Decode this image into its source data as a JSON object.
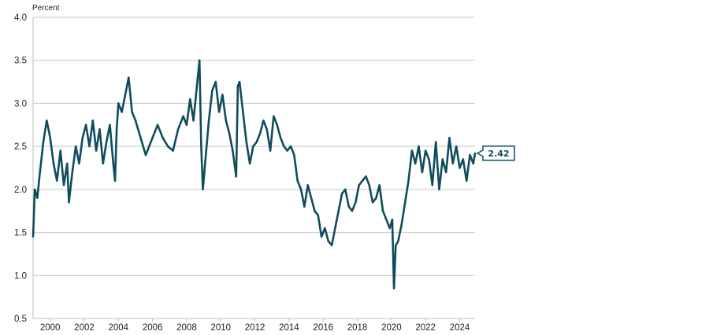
{
  "chart_data": {
    "type": "line",
    "title": "",
    "ylabel": "Percent",
    "xlabel": "",
    "x_range": [
      1999.0,
      2024.9
    ],
    "ylim": [
      0.5,
      4.0
    ],
    "y_ticks": [
      "0.5",
      "1.0",
      "1.5",
      "2.0",
      "2.5",
      "3.0",
      "3.5",
      "4.0"
    ],
    "x_ticks": [
      "2000",
      "2002",
      "2004",
      "2006",
      "2008",
      "2010",
      "2012",
      "2014",
      "2016",
      "2018",
      "2020",
      "2022",
      "2024"
    ],
    "grid": "horizontal",
    "line_color": "#0f4c5c",
    "latest_value_label": "2.42",
    "series": [
      {
        "x": [
          1999.0,
          1999.1,
          1999.25,
          1999.4,
          1999.6,
          1999.8,
          2000.0,
          2000.2,
          2000.4,
          2000.6,
          2000.8,
          2001.0,
          2001.1,
          2001.3,
          2001.5,
          2001.7,
          2001.9,
          2002.1,
          2002.3,
          2002.5,
          2002.7,
          2002.9,
          2003.1,
          2003.3,
          2003.5,
          2003.7,
          2003.8,
          2003.9,
          2004.0,
          2004.2,
          2004.4,
          2004.6,
          2004.8,
          2005.0,
          2005.3,
          2005.6,
          2005.8,
          2006.0,
          2006.3,
          2006.6,
          2006.9,
          2007.2,
          2007.5,
          2007.8,
          2008.0,
          2008.2,
          2008.4,
          2008.6,
          2008.75,
          2008.85,
          2008.95,
          2009.1,
          2009.3,
          2009.5,
          2009.7,
          2009.9,
          2010.1,
          2010.3,
          2010.5,
          2010.7,
          2010.9,
          2011.0,
          2011.1,
          2011.3,
          2011.5,
          2011.7,
          2011.9,
          2012.1,
          2012.3,
          2012.5,
          2012.7,
          2012.9,
          2013.1,
          2013.3,
          2013.5,
          2013.7,
          2013.9,
          2014.1,
          2014.3,
          2014.5,
          2014.7,
          2014.9,
          2015.1,
          2015.3,
          2015.5,
          2015.7,
          2015.9,
          2016.1,
          2016.3,
          2016.5,
          2016.7,
          2016.9,
          2017.1,
          2017.3,
          2017.5,
          2017.7,
          2017.9,
          2018.1,
          2018.3,
          2018.5,
          2018.7,
          2018.9,
          2019.1,
          2019.3,
          2019.5,
          2019.7,
          2019.9,
          2020.05,
          2020.15,
          2020.25,
          2020.4,
          2020.6,
          2020.8,
          2021.0,
          2021.2,
          2021.4,
          2021.6,
          2021.8,
          2022.0,
          2022.2,
          2022.4,
          2022.6,
          2022.8,
          2023.0,
          2023.2,
          2023.4,
          2023.6,
          2023.8,
          2024.0,
          2024.2,
          2024.4,
          2024.6,
          2024.8,
          2024.9
        ],
        "y": [
          1.45,
          2.0,
          1.9,
          2.2,
          2.55,
          2.8,
          2.6,
          2.3,
          2.1,
          2.45,
          2.05,
          2.3,
          1.85,
          2.2,
          2.5,
          2.3,
          2.6,
          2.75,
          2.5,
          2.8,
          2.45,
          2.7,
          2.3,
          2.55,
          2.75,
          2.3,
          2.1,
          2.7,
          3.0,
          2.9,
          3.1,
          3.3,
          2.9,
          2.8,
          2.6,
          2.4,
          2.5,
          2.6,
          2.75,
          2.6,
          2.5,
          2.45,
          2.7,
          2.85,
          2.75,
          3.05,
          2.8,
          3.2,
          3.5,
          2.5,
          2.0,
          2.35,
          2.8,
          3.15,
          3.25,
          2.9,
          3.1,
          2.8,
          2.65,
          2.45,
          2.15,
          3.2,
          3.25,
          2.9,
          2.55,
          2.3,
          2.5,
          2.55,
          2.65,
          2.8,
          2.7,
          2.45,
          2.85,
          2.75,
          2.6,
          2.5,
          2.45,
          2.5,
          2.4,
          2.1,
          2.0,
          1.8,
          2.05,
          1.9,
          1.75,
          1.7,
          1.45,
          1.55,
          1.4,
          1.35,
          1.55,
          1.75,
          1.95,
          2.0,
          1.8,
          1.75,
          1.85,
          2.05,
          2.1,
          2.15,
          2.05,
          1.85,
          1.9,
          2.05,
          1.75,
          1.65,
          1.55,
          1.65,
          0.85,
          1.35,
          1.4,
          1.6,
          1.85,
          2.1,
          2.45,
          2.3,
          2.5,
          2.2,
          2.45,
          2.35,
          2.05,
          2.55,
          2.0,
          2.35,
          2.2,
          2.6,
          2.3,
          2.5,
          2.25,
          2.35,
          2.1,
          2.4,
          2.3,
          2.42
        ]
      }
    ]
  }
}
